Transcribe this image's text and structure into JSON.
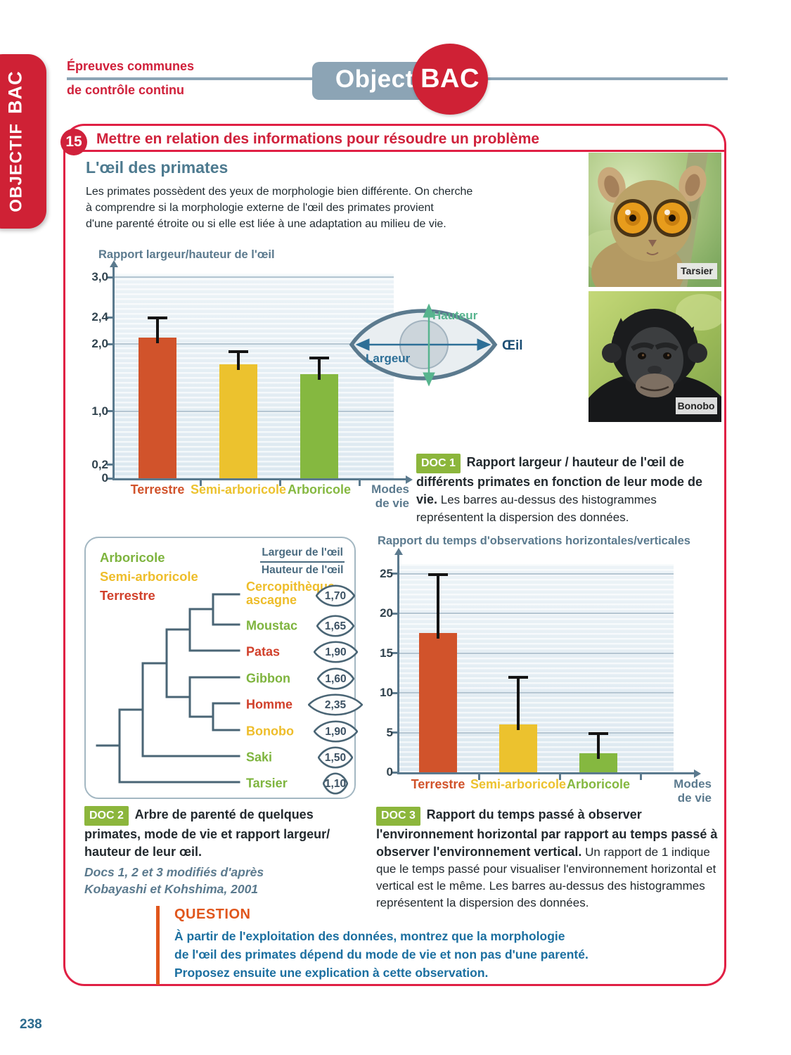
{
  "page": {
    "number": "238"
  },
  "sidebar_tab": {
    "word1": "OBJECTIF",
    "word2": "BAC"
  },
  "header": {
    "eyebrow_line1": "Épreuves communes",
    "eyebrow_line2": "de contrôle continu",
    "logo_left": "Objectif",
    "logo_right": "BAC"
  },
  "exercise": {
    "number": "15",
    "title": "Mettre en relation des informations pour résoudre un problème"
  },
  "lesson": {
    "heading": "L'œil des primates",
    "intro_lines": [
      "Les primates possèdent des yeux de morphologie bien différente. On cherche",
      "à comprendre si la morphologie externe de l'œil des primates provient",
      "d'une parenté étroite ou si elle est liée à une adaptation au milieu de vie."
    ]
  },
  "eye_diagram": {
    "height_label": "Hauteur",
    "width_label": "Largeur",
    "eye_label": "Œil"
  },
  "photos": [
    {
      "label": "Tarsier"
    },
    {
      "label": "Bonobo"
    }
  ],
  "chart_data": [
    {
      "type": "bar",
      "title": "Rapport largeur/hauteur de l'œil",
      "categories": [
        "Terrestre",
        "Semi-arboricole",
        "Arboricole"
      ],
      "values": [
        2.1,
        1.7,
        1.55
      ],
      "error_bar_tops": [
        2.4,
        1.9,
        1.8
      ],
      "bar_colors": [
        "#d1532b",
        "#ecc22e",
        "#85b840"
      ],
      "xlabel": "Modes de vie",
      "ylabel": "Rapport largeur/hauteur de l'œil",
      "ylim": [
        0,
        3.2
      ],
      "yticks": [
        0,
        0.2,
        1,
        2,
        2.4,
        3
      ],
      "ytick_labels": [
        "0",
        "0,2",
        "1,0",
        "2,0",
        "2,4",
        "3,0"
      ],
      "gridlines": [
        1,
        2,
        3
      ],
      "legend_position": "none",
      "note": "Les barres au-dessus des histogrammes représentent la dispersion des données."
    },
    {
      "type": "bar",
      "title": "Rapport du temps d'observations horizontales/verticales",
      "categories": [
        "Terrestre",
        "Semi-arboricole",
        "Arboricole"
      ],
      "values": [
        17.5,
        6,
        2.4
      ],
      "error_bar_tops": [
        25,
        12,
        5
      ],
      "bar_colors": [
        "#d1532b",
        "#ecc22e",
        "#85b840"
      ],
      "xlabel": "Modes de vie",
      "ylabel": "Rapport du temps d'observations horizontales/verticales",
      "ylim": [
        0,
        27
      ],
      "yticks": [
        0,
        5,
        10,
        15,
        20,
        25
      ],
      "ytick_labels": [
        "0",
        "5",
        "10",
        "15",
        "20",
        "25"
      ],
      "gridlines": [
        5,
        10,
        15,
        20,
        25
      ],
      "legend_position": "none",
      "note": "Les barres au-dessus des histogrammes représentent la dispersion des données."
    }
  ],
  "doc1": {
    "badge": "DOC 1",
    "bold": "Rapport largeur / hauteur de l'œil de différents primates en fonction de leur mode de vie.",
    "rest": "Les barres au-dessus des histogrammes représentent la dispersion des données."
  },
  "doc2": {
    "badge": "DOC 2",
    "caption_bold": "Arbre de parenté de quelques primates, mode de vie et rapport largeur/ hauteur de leur œil.",
    "legend": [
      {
        "label": "Arboricole",
        "color": "#7eb43e"
      },
      {
        "label": "Semi-arboricole",
        "color": "#eebd2a"
      },
      {
        "label": "Terrestre",
        "color": "#d1402b"
      }
    ],
    "ratio_numerator": "Largeur de l'œil",
    "ratio_denominator": "Hauteur de l'œil",
    "taxa": [
      {
        "name": "Cercopithèque ascagne",
        "mode": "Semi-arboricole",
        "value": "1,70",
        "ratio": 1.7
      },
      {
        "name": "Moustac",
        "mode": "Arboricole",
        "value": "1,65",
        "ratio": 1.65
      },
      {
        "name": "Patas",
        "mode": "Terrestre",
        "value": "1,90",
        "ratio": 1.9
      },
      {
        "name": "Gibbon",
        "mode": "Arboricole",
        "value": "1,60",
        "ratio": 1.6
      },
      {
        "name": "Homme",
        "mode": "Terrestre",
        "value": "2,35",
        "ratio": 2.35
      },
      {
        "name": "Bonobo",
        "mode": "Semi-arboricole",
        "value": "1,90",
        "ratio": 1.9
      },
      {
        "name": "Saki",
        "mode": "Arboricole",
        "value": "1,50",
        "ratio": 1.5
      },
      {
        "name": "Tarsier",
        "mode": "Arboricole",
        "value": "1,10",
        "ratio": 1.1
      }
    ]
  },
  "source": {
    "line1": "Docs 1, 2 et 3 modifiés d'après",
    "line2": "Kobayashi et Kohshima, 2001"
  },
  "doc3": {
    "badge": "DOC 3",
    "bold": "Rapport du temps passé à observer l'environnement horizontal par rapport au temps passé à observer l'environnement vertical.",
    "rest": "Un rapport de 1 indique que le temps passé pour visualiser l'environnement horizontal et vertical est le même. Les barres au-dessus des histogrammes représentent la dispersion des données."
  },
  "question": {
    "label": "QUESTION",
    "lines": [
      "À partir de l'exploitation des données, montrez que la morphologie",
      "de l'œil des primates dépend du mode de vie et non pas d'une parenté.",
      "Proposez ensuite une explication à cette observation."
    ]
  },
  "colors": {
    "accent_red": "#d0213b",
    "frame_border_red": "#e02044",
    "slate_blue": "#5b7a8e",
    "heading_blue": "#4d7a8f",
    "question_orange": "#e0561c",
    "question_blue": "#1b6fa0",
    "doc_badge_green": "#8cb63c",
    "bar_terrestre": "#d1532b",
    "bar_semi_arboricole": "#ecc22e",
    "bar_arboricole": "#85b840",
    "tree_line": "#4a6575",
    "arrow_blue": "#2d6f97",
    "arrow_green": "#57b48e",
    "logo_gray_blue": "#8ca4b5",
    "page_number_blue": "#2c6b8e"
  }
}
